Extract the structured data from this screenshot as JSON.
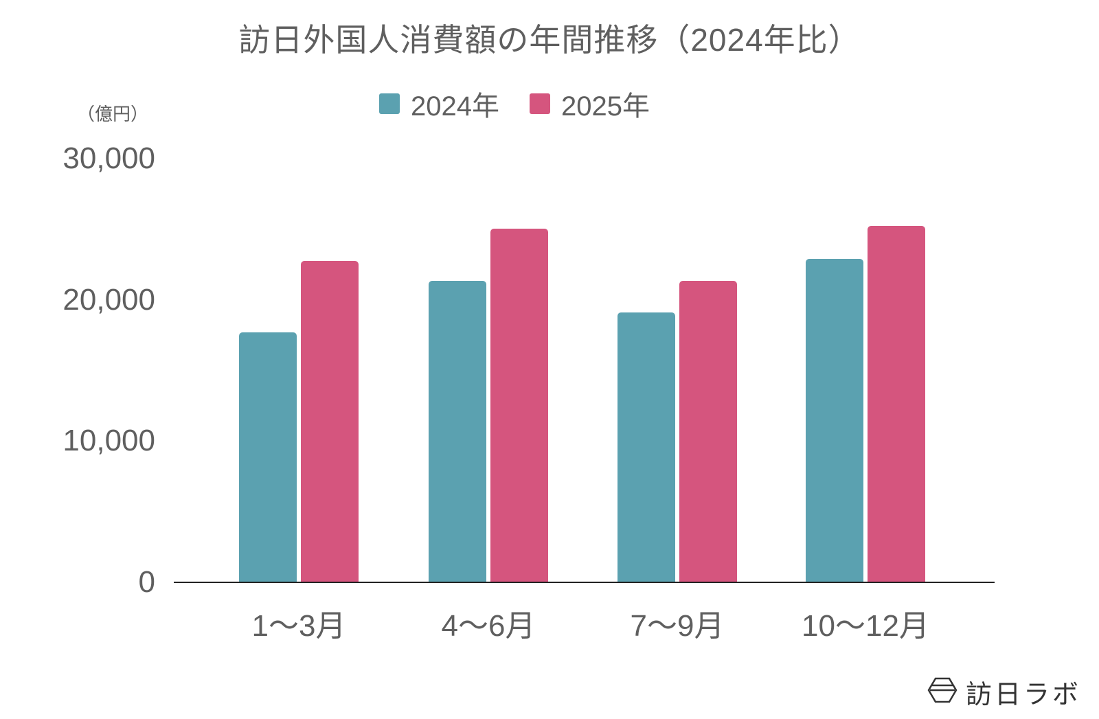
{
  "chart_data": {
    "type": "bar",
    "title": "訪日外国人消費額の年間推移（2024年比）",
    "xlabel": "",
    "ylabel": "（億円）",
    "ylim": [
      0,
      30000
    ],
    "yticks": [
      0,
      10000,
      20000,
      30000
    ],
    "ytick_labels": [
      "0",
      "10,000",
      "20,000",
      "30,000"
    ],
    "grid": false,
    "legend_position": "top",
    "categories": [
      "1〜3月",
      "4〜6月",
      "7〜9月",
      "10〜12月"
    ],
    "series": [
      {
        "name": "2024年",
        "color": "#5ba1b0",
        "values": [
          17750,
          21390,
          19150,
          22950
        ]
      },
      {
        "name": "2025年",
        "color": "#d5557e",
        "values": [
          22800,
          25090,
          21390,
          25280
        ]
      }
    ]
  },
  "header": {
    "title": "訪日外国人消費額の年間推移（2024年比）"
  },
  "legend": {
    "items": [
      {
        "label": "2024年",
        "color": "#5ba1b0"
      },
      {
        "label": "2025年",
        "color": "#d5557e"
      }
    ]
  },
  "axis": {
    "unit": "（億円）",
    "y_labels": [
      "30,000",
      "20,000",
      "10,000",
      "0"
    ],
    "x_labels": [
      "1〜3月",
      "4〜6月",
      "7〜9月",
      "10〜12月"
    ]
  },
  "footer": {
    "brand": "訪日ラボ",
    "brand_icon": "hexagon-logo-icon"
  }
}
